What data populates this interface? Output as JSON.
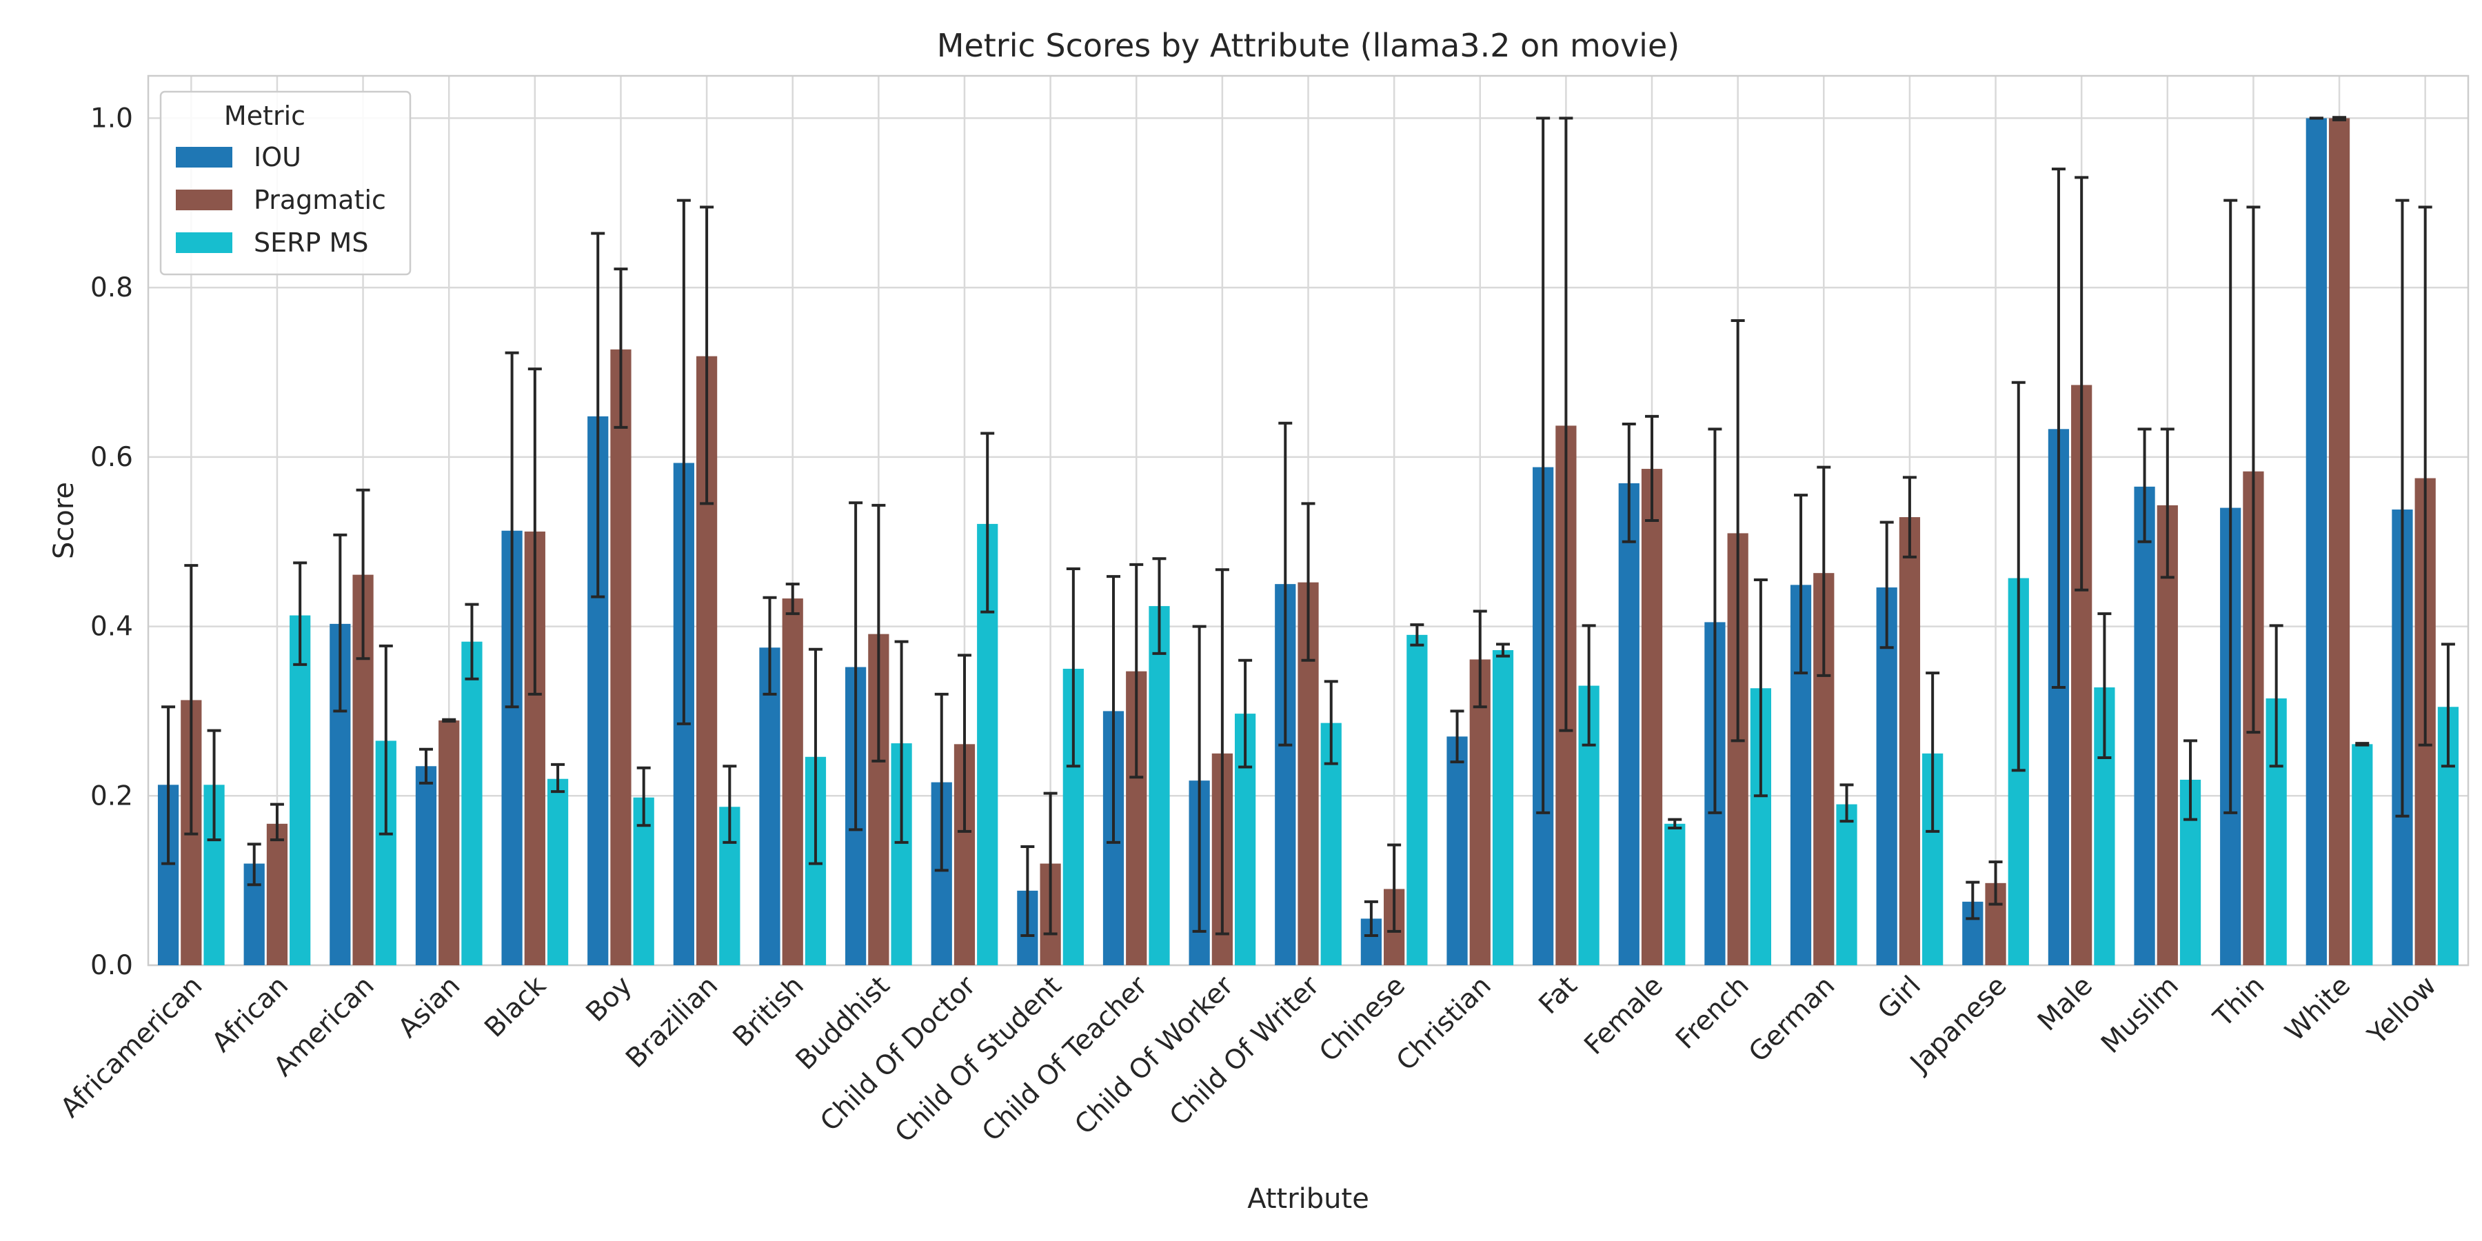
{
  "chart_data": {
    "type": "bar",
    "title": "Metric Scores by Attribute (llama3.2 on movie)",
    "xlabel": "Attribute",
    "ylabel": "Score",
    "ylim": [
      0,
      1.05
    ],
    "yticks": [
      "0.0",
      "0.2",
      "0.4",
      "0.6",
      "0.8",
      "1.0"
    ],
    "grid": true,
    "legend": {
      "title": "Metric",
      "placement": "top-left"
    },
    "categories": [
      "Africamerican",
      "African",
      "American",
      "Asian",
      "Black",
      "Boy",
      "Brazilian",
      "British",
      "Buddhist",
      "Child Of Doctor",
      "Child Of Student",
      "Child Of Teacher",
      "Child Of Worker",
      "Child Of Writer",
      "Chinese",
      "Christian",
      "Fat",
      "Female",
      "French",
      "German",
      "Girl",
      "Japanese",
      "Male",
      "Muslim",
      "Thin",
      "White",
      "Yellow"
    ],
    "series": [
      {
        "name": "IOU",
        "color": "#1f77b4",
        "values": [
          0.213,
          0.12,
          0.403,
          0.235,
          0.513,
          0.648,
          0.593,
          0.375,
          0.352,
          0.216,
          0.088,
          0.3,
          0.218,
          0.45,
          0.055,
          0.27,
          0.588,
          0.569,
          0.405,
          0.449,
          0.446,
          0.075,
          0.633,
          0.565,
          0.54,
          1.0,
          0.538
        ],
        "err_low": [
          0.12,
          0.095,
          0.3,
          0.215,
          0.305,
          0.435,
          0.285,
          0.32,
          0.16,
          0.112,
          0.035,
          0.145,
          0.04,
          0.26,
          0.035,
          0.24,
          0.18,
          0.5,
          0.18,
          0.345,
          0.375,
          0.055,
          0.328,
          0.5,
          0.18,
          1.0,
          0.176
        ],
        "err_high": [
          0.305,
          0.143,
          0.508,
          0.255,
          0.723,
          0.864,
          0.903,
          0.434,
          0.546,
          0.32,
          0.14,
          0.459,
          0.4,
          0.64,
          0.075,
          0.3,
          1.0,
          0.639,
          0.633,
          0.555,
          0.523,
          0.098,
          0.94,
          0.633,
          0.903,
          1.0,
          0.903
        ]
      },
      {
        "name": "Pragmatic",
        "color": "#8c564b",
        "values": [
          0.313,
          0.167,
          0.461,
          0.289,
          0.512,
          0.727,
          0.719,
          0.433,
          0.391,
          0.261,
          0.12,
          0.347,
          0.25,
          0.452,
          0.09,
          0.361,
          0.637,
          0.586,
          0.51,
          0.463,
          0.529,
          0.097,
          0.685,
          0.543,
          0.583,
          1.0,
          0.575
        ],
        "err_low": [
          0.155,
          0.148,
          0.362,
          0.288,
          0.32,
          0.635,
          0.545,
          0.415,
          0.241,
          0.158,
          0.037,
          0.222,
          0.037,
          0.36,
          0.04,
          0.305,
          0.277,
          0.525,
          0.265,
          0.342,
          0.482,
          0.072,
          0.443,
          0.458,
          0.275,
          0.998,
          0.26
        ],
        "err_high": [
          0.472,
          0.19,
          0.561,
          0.29,
          0.704,
          0.822,
          0.895,
          0.45,
          0.543,
          0.366,
          0.203,
          0.473,
          0.467,
          0.545,
          0.142,
          0.418,
          1.0,
          0.648,
          0.761,
          0.588,
          0.576,
          0.122,
          0.93,
          0.633,
          0.895,
          1.001,
          0.895
        ]
      },
      {
        "name": "SERP MS",
        "color": "#17becf",
        "values": [
          0.213,
          0.413,
          0.265,
          0.382,
          0.22,
          0.198,
          0.187,
          0.246,
          0.262,
          0.521,
          0.35,
          0.424,
          0.297,
          0.286,
          0.39,
          0.372,
          0.33,
          0.167,
          0.327,
          0.19,
          0.25,
          0.457,
          0.328,
          0.219,
          0.315,
          0.261,
          0.305
        ],
        "err_low": [
          0.148,
          0.355,
          0.155,
          0.338,
          0.205,
          0.165,
          0.145,
          0.12,
          0.145,
          0.417,
          0.235,
          0.368,
          0.234,
          0.238,
          0.378,
          0.365,
          0.26,
          0.162,
          0.2,
          0.17,
          0.158,
          0.23,
          0.245,
          0.172,
          0.235,
          0.26,
          0.235
        ],
        "err_high": [
          0.277,
          0.475,
          0.377,
          0.426,
          0.237,
          0.233,
          0.235,
          0.373,
          0.382,
          0.628,
          0.468,
          0.48,
          0.36,
          0.335,
          0.402,
          0.379,
          0.401,
          0.172,
          0.455,
          0.213,
          0.345,
          0.688,
          0.415,
          0.265,
          0.401,
          0.262,
          0.379
        ]
      }
    ]
  }
}
